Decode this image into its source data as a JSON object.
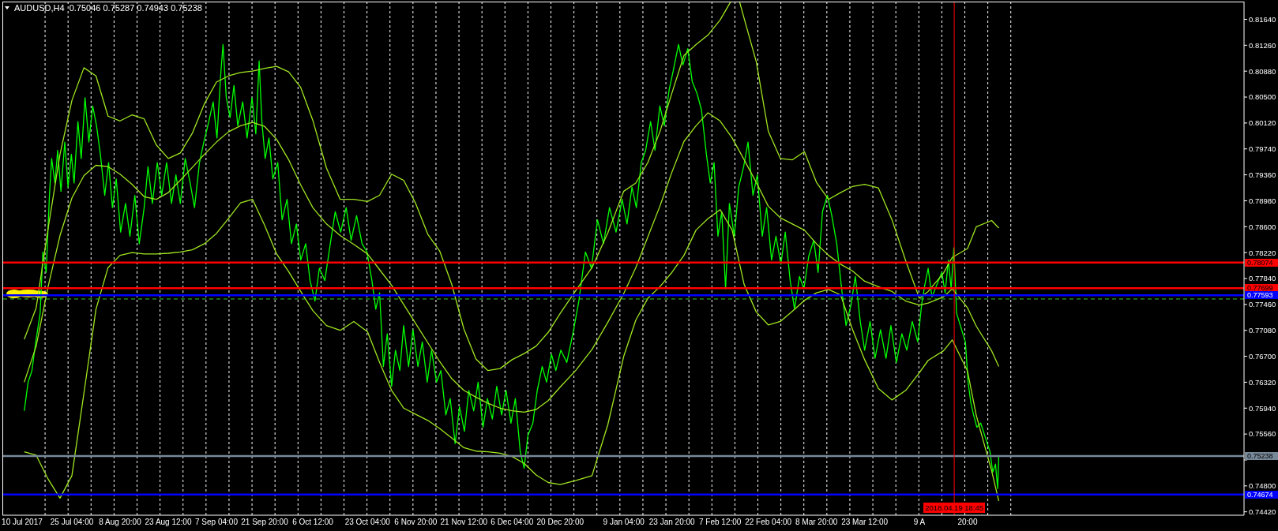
{
  "chart_data": {
    "type": "line",
    "title": "AUDUSD,H4  0.75046 0.75287 0.74943 0.75238",
    "xlim": [
      "2017-07-04",
      "2018-07-17"
    ],
    "ylim": [
      0.7437,
      0.819
    ],
    "xticks": [
      {
        "value": "2017-07-10",
        "label": "10 Jul 2017"
      },
      {
        "value": "2017-07-17",
        "label": null
      },
      {
        "value": "2017-07-24",
        "label": null
      },
      {
        "value": "2017-07-25T04:00",
        "label": "25 Jul 04:00"
      },
      {
        "value": "2017-07-31",
        "label": null
      },
      {
        "value": "2017-08-07",
        "label": null
      },
      {
        "value": "2017-08-08T20:00",
        "label": "8 Aug 20:00"
      },
      {
        "value": "2017-08-14",
        "label": null
      },
      {
        "value": "2017-08-21",
        "label": null
      },
      {
        "value": "2017-08-23T12:00",
        "label": "23 Aug 12:00"
      },
      {
        "value": "2017-08-28",
        "label": null
      },
      {
        "value": "2017-09-04",
        "label": null
      },
      {
        "value": "2017-09-07T04:00",
        "label": "7 Sep 04:00"
      },
      {
        "value": "2017-09-11",
        "label": null
      },
      {
        "value": "2017-09-18",
        "label": null
      },
      {
        "value": "2017-09-21T20:00",
        "label": "21 Sep 20:00"
      },
      {
        "value": "2017-09-25",
        "label": null
      },
      {
        "value": "2017-10-02",
        "label": null
      },
      {
        "value": "2017-10-06T12:00",
        "label": "6 Oct 12:00"
      },
      {
        "value": "2017-10-09",
        "label": null
      },
      {
        "value": "2017-10-16",
        "label": null
      },
      {
        "value": "2017-10-23",
        "label": null
      },
      {
        "value": "2017-10-23T04:00",
        "label": "23 Oct 04:00"
      },
      {
        "value": "2017-10-30",
        "label": null
      },
      {
        "value": "2017-11-06",
        "label": null
      },
      {
        "value": "2017-11-06T20:00",
        "label": "6 Nov 20:00"
      },
      {
        "value": "2017-11-13",
        "label": null
      },
      {
        "value": "2017-11-20",
        "label": null
      },
      {
        "value": "2017-11-21T12:00",
        "label": "21 Nov 12:00"
      },
      {
        "value": "2017-11-27",
        "label": null
      },
      {
        "value": "2017-12-04",
        "label": null
      },
      {
        "value": "2017-12-06T04:00",
        "label": "6 Dec 04:00"
      },
      {
        "value": "2017-12-11",
        "label": null
      },
      {
        "value": "2017-12-18",
        "label": null
      },
      {
        "value": "2017-12-20T20:00",
        "label": "20 Dec 20:00"
      },
      {
        "value": "2017-12-25",
        "label": null
      },
      {
        "value": "2018-01-01",
        "label": null
      },
      {
        "value": "2018-01-08",
        "label": null
      },
      {
        "value": "2018-01-09T04:00",
        "label": "9 Jan 04:00"
      },
      {
        "value": "2018-01-15",
        "label": null
      },
      {
        "value": "2018-01-22",
        "label": null
      },
      {
        "value": "2018-01-23T20:00",
        "label": "23 Jan 20:00"
      },
      {
        "value": "2018-01-29",
        "label": null
      },
      {
        "value": "2018-02-05",
        "label": null
      },
      {
        "value": "2018-02-07T12:00",
        "label": "7 Feb 12:00"
      },
      {
        "value": "2018-02-12",
        "label": null
      },
      {
        "value": "2018-02-19",
        "label": null
      },
      {
        "value": "2018-02-22T04:00",
        "label": "22 Feb 04:00"
      },
      {
        "value": "2018-02-26",
        "label": null
      },
      {
        "value": "2018-03-05",
        "label": null
      },
      {
        "value": "2018-03-08T20:00",
        "label": "8 Mar 20:00"
      },
      {
        "value": "2018-03-12",
        "label": null
      },
      {
        "value": "2018-03-19",
        "label": null
      },
      {
        "value": "2018-03-23T12:00",
        "label": "23 Mar 12:00"
      },
      {
        "value": "2018-03-26",
        "label": null
      },
      {
        "value": "2018-04-02",
        "label": null
      },
      {
        "value": "2018-04-09",
        "label": null
      },
      {
        "value": "2018-04-09T04:00",
        "label": "9 A"
      },
      {
        "value": "2018-04-16",
        "label": null
      },
      {
        "value": "2018-04-23",
        "label": null
      },
      {
        "value": "2018-04-23T20:00",
        "label": "20:00"
      },
      {
        "value": "2018-04-30",
        "label": null
      },
      {
        "value": "2018-05-07",
        "label": null
      }
    ],
    "yticks": [
      {
        "value": 0.8164,
        "label": "0.81640"
      },
      {
        "value": 0.8126,
        "label": "0.81260"
      },
      {
        "value": 0.8088,
        "label": "0.80880"
      },
      {
        "value": 0.805,
        "label": "0.80500"
      },
      {
        "value": 0.8012,
        "label": "0.80120"
      },
      {
        "value": 0.7974,
        "label": "0.79740"
      },
      {
        "value": 0.7936,
        "label": "0.79360"
      },
      {
        "value": 0.7898,
        "label": "0.78980"
      },
      {
        "value": 0.786,
        "label": "0.78600"
      },
      {
        "value": 0.7822,
        "label": "0.78220"
      },
      {
        "value": 0.7784,
        "label": "0.77840"
      },
      {
        "value": 0.7746,
        "label": "0.77460"
      },
      {
        "value": 0.7708,
        "label": "0.77080"
      },
      {
        "value": 0.767,
        "label": "0.76700"
      },
      {
        "value": 0.7632,
        "label": "0.76320"
      },
      {
        "value": 0.7594,
        "label": "0.75940"
      },
      {
        "value": 0.7556,
        "label": "0.75560"
      },
      {
        "value": 0.7518,
        "label": null
      },
      {
        "value": 0.748,
        "label": "0.74800"
      },
      {
        "value": 0.7442,
        "label": "0.74420"
      }
    ],
    "grid": "x",
    "series": [
      {
        "color": "#00ff00",
        "x": [
          "2017-07-10T16:00",
          "2017-07-11T20:00",
          "2017-07-13T00:00",
          "2017-07-14T04:00",
          "2017-07-15T12:00",
          "2017-07-16T08:00",
          "2017-07-17T08:00",
          "2017-07-18T08:00",
          "2017-07-19T00:00",
          "2017-07-20T00:00",
          "2017-07-20T20:00",
          "2017-07-21T20:00",
          "2017-07-23T00:00",
          "2017-07-24T00:00",
          "2017-07-25T00:00",
          "2017-07-25T20:00",
          "2017-07-27T00:00",
          "2017-07-28T00:00",
          "2017-07-29T04:00",
          "2017-07-30T08:00",
          "2017-07-31T12:00",
          "2017-08-01T16:00",
          "2017-08-02T20:00",
          "2017-08-04T04:00",
          "2017-08-05T08:00",
          "2017-08-06T12:00",
          "2017-08-07T16:00",
          "2017-08-09T00:00",
          "2017-08-10T12:00",
          "2017-08-11T20:00",
          "2017-08-13T08:00",
          "2017-08-14T16:00",
          "2017-08-16T04:00",
          "2017-08-17T08:00",
          "2017-08-18T16:00",
          "2017-08-20T04:00",
          "2017-08-21T12:00",
          "2017-08-23T00:00",
          "2017-08-24T12:00",
          "2017-08-25T20:00",
          "2017-08-27T04:00",
          "2017-08-28T16:00",
          "2017-08-30T04:00",
          "2017-08-31T12:00",
          "2017-09-02T00:00",
          "2017-09-03T08:00",
          "2017-09-04T20:00",
          "2017-09-06T04:00",
          "2017-09-07T08:00",
          "2017-09-08T12:00",
          "2017-09-09T04:00",
          "2017-09-10T04:00",
          "2017-09-11T08:00",
          "2017-09-12T12:00",
          "2017-09-13T16:00",
          "2017-09-15T04:00",
          "2017-09-16T12:00",
          "2017-09-18T00:00",
          "2017-09-19T04:00",
          "2017-09-20T04:00",
          "2017-09-21T00:00",
          "2017-09-22T00:00",
          "2017-09-23T04:00",
          "2017-09-24T08:00",
          "2017-09-25T20:00",
          "2017-09-27T04:00",
          "2017-09-28T16:00",
          "2017-09-30T00:00",
          "2017-10-01T12:00",
          "2017-10-02T20:00",
          "2017-10-04T08:00",
          "2017-10-05T16:00",
          "2017-10-07T04:00",
          "2017-10-08T12:00",
          "2017-10-10T04:00",
          "2017-10-11T20:00",
          "2017-10-13T08:00",
          "2017-10-15T00:00",
          "2017-10-16T16:00",
          "2017-10-18T04:00",
          "2017-10-19T20:00",
          "2017-10-21T12:00",
          "2017-10-23T00:00",
          "2017-10-24T12:00",
          "2017-10-25T16:00",
          "2017-10-26T20:00",
          "2017-10-28T00:00",
          "2017-10-29T04:00",
          "2017-10-30T12:00",
          "2017-10-31T16:00",
          "2017-11-02T00:00",
          "2017-11-03T04:00",
          "2017-11-04T16:00",
          "2017-11-06T00:00",
          "2017-11-07T12:00",
          "2017-11-08T20:00",
          "2017-11-10T08:00",
          "2017-11-11T16:00",
          "2017-11-13T04:00",
          "2017-11-14T12:00",
          "2017-11-16T00:00",
          "2017-11-17T08:00",
          "2017-11-18T20:00",
          "2017-11-20T04:00",
          "2017-11-21T16:00",
          "2017-11-23T00:00",
          "2017-11-24T12:00",
          "2017-11-25T20:00",
          "2017-11-27T08:00",
          "2017-11-28T16:00",
          "2017-11-30T04:00",
          "2017-12-01T12:00",
          "2017-12-03T00:00",
          "2017-12-04T08:00",
          "2017-12-05T20:00",
          "2017-12-07T04:00",
          "2017-12-08T16:00",
          "2017-12-09T20:00",
          "2017-12-11T00:00",
          "2017-12-12T12:00",
          "2017-12-13T20:00",
          "2017-12-15T08:00",
          "2017-12-16T16:00",
          "2017-12-18T04:00",
          "2017-12-19T12:00",
          "2017-12-21T00:00",
          "2017-12-22T20:00",
          "2017-12-24T16:00",
          "2017-12-26T12:00",
          "2017-12-28T12:00",
          "2017-12-30T08:00",
          "2018-01-01T04:00",
          "2018-01-03T00:00",
          "2018-01-04T20:00",
          "2018-01-06T20:00",
          "2018-01-08T16:00",
          "2018-01-10T04:00",
          "2018-01-11T16:00",
          "2018-01-13T00:00",
          "2018-01-14T12:00",
          "2018-01-15T20:00",
          "2018-01-17T08:00",
          "2018-01-18T16:00",
          "2018-01-20T04:00",
          "2018-01-21T12:00",
          "2018-01-23T00:00",
          "2018-01-24T08:00",
          "2018-01-25T20:00",
          "2018-01-27T04:00",
          "2018-01-28T16:00",
          "2018-01-30T00:00",
          "2018-01-31T12:00",
          "2018-02-01T20:00",
          "2018-02-03T08:00",
          "2018-02-04T12:00",
          "2018-02-05T16:00",
          "2018-02-06T20:00",
          "2018-02-08T00:00",
          "2018-02-09T04:00",
          "2018-02-10T08:00",
          "2018-02-11T20:00",
          "2018-02-13T04:00",
          "2018-02-14T16:00",
          "2018-02-16T00:00",
          "2018-02-17T12:00",
          "2018-02-18T20:00",
          "2018-02-20T08:00",
          "2018-02-21T16:00",
          "2018-02-23T04:00",
          "2018-02-24T12:00",
          "2018-02-26T00:00",
          "2018-02-27T08:00",
          "2018-02-28T20:00",
          "2018-03-02T04:00",
          "2018-03-03T16:00",
          "2018-03-05T00:00",
          "2018-03-06T12:00",
          "2018-03-08T00:00",
          "2018-03-09T08:00",
          "2018-03-10T16:00",
          "2018-03-12T04:00",
          "2018-03-13T12:00",
          "2018-03-15T00:00",
          "2018-03-16T12:00",
          "2018-03-17T20:00",
          "2018-03-19T08:00",
          "2018-03-20T16:00",
          "2018-03-22T04:00",
          "2018-03-23T12:00",
          "2018-03-25T04:00",
          "2018-03-26T16:00",
          "2018-03-28T08:00",
          "2018-03-30T00:00",
          "2018-03-31T12:00",
          "2018-04-02T04:00",
          "2018-04-03T20:00",
          "2018-04-05T08:00",
          "2018-04-07T00:00",
          "2018-04-08T16:00",
          "2018-04-09T20:00",
          "2018-04-10T20:00",
          "2018-04-11T20:00",
          "2018-04-13T00:00",
          "2018-04-16T00:00",
          "2018-04-17T00:00",
          "2018-04-18T00:00",
          "2018-04-18T20:00",
          "2018-04-19T16:00",
          "2018-04-20T12:00",
          "2018-04-23T04:00",
          "2018-04-24T00:00",
          "2018-04-24T20:00",
          "2018-04-25T16:00",
          "2018-04-26T16:00",
          "2018-04-27T20:00",
          "2018-04-30T16:00",
          "2018-05-01T12:00",
          "2018-05-02T08:00",
          "2018-05-03T00:00",
          "2018-05-03T08:00"
        ],
        "values": [
          0.759,
          0.7632,
          0.7649,
          0.7691,
          0.7733,
          0.7823,
          0.7793,
          0.7906,
          0.796,
          0.7924,
          0.7972,
          0.7912,
          0.7984,
          0.7918,
          0.7966,
          0.7924,
          0.8014,
          0.796,
          0.8049,
          0.7984,
          0.8037,
          0.8008,
          0.7966,
          0.7906,
          0.7954,
          0.7888,
          0.793,
          0.7852,
          0.7894,
          0.7846,
          0.7906,
          0.7835,
          0.7888,
          0.7948,
          0.7894,
          0.7954,
          0.7906,
          0.7954,
          0.7894,
          0.7936,
          0.7894,
          0.796,
          0.7924,
          0.7888,
          0.7954,
          0.7984,
          0.8014,
          0.8043,
          0.799,
          0.8085,
          0.8127,
          0.8049,
          0.802,
          0.8067,
          0.8008,
          0.8043,
          0.799,
          0.8049,
          0.7996,
          0.8103,
          0.8014,
          0.796,
          0.799,
          0.793,
          0.7954,
          0.787,
          0.79,
          0.7835,
          0.7864,
          0.7811,
          0.7835,
          0.7781,
          0.7751,
          0.7799,
          0.7781,
          0.7835,
          0.7882,
          0.7852,
          0.7888,
          0.784,
          0.7876,
          0.7835,
          0.7823,
          0.7781,
          0.7739,
          0.7763,
          0.7655,
          0.7703,
          0.7626,
          0.7679,
          0.7649,
          0.7715,
          0.7655,
          0.7709,
          0.7655,
          0.7691,
          0.7632,
          0.7679,
          0.7632,
          0.7649,
          0.7584,
          0.7608,
          0.7542,
          0.7596,
          0.756,
          0.762,
          0.759,
          0.7632,
          0.7566,
          0.7608,
          0.7578,
          0.7626,
          0.7584,
          0.762,
          0.7572,
          0.7608,
          0.753,
          0.7506,
          0.7554,
          0.7572,
          0.762,
          0.7655,
          0.7632,
          0.7673,
          0.7649,
          0.7679,
          0.7661,
          0.7703,
          0.7751,
          0.7823,
          0.7799,
          0.787,
          0.7835,
          0.7888,
          0.7852,
          0.79,
          0.7864,
          0.7918,
          0.7888,
          0.7954,
          0.7972,
          0.8014,
          0.7972,
          0.8037,
          0.8008,
          0.8061,
          0.8091,
          0.8127,
          0.8097,
          0.8121,
          0.8073,
          0.8055,
          0.8031,
          0.7966,
          0.7924,
          0.7954,
          0.7846,
          0.7882,
          0.7769,
          0.7894,
          0.7846,
          0.7918,
          0.7948,
          0.7984,
          0.7906,
          0.7936,
          0.7846,
          0.7888,
          0.7811,
          0.7846,
          0.7805,
          0.7852,
          0.7781,
          0.7739,
          0.7787,
          0.7769,
          0.7817,
          0.784,
          0.7793,
          0.7882,
          0.7906,
          0.7876,
          0.7835,
          0.7769,
          0.7715,
          0.7745,
          0.7787,
          0.7721,
          0.7679,
          0.7721,
          0.7667,
          0.7709,
          0.7667,
          0.7715,
          0.7661,
          0.7703,
          0.7679,
          0.7721,
          0.7691,
          0.7745,
          0.7775,
          0.7799,
          0.7757,
          0.7793,
          0.7763,
          0.7811,
          0.7769,
          0.7829,
          0.7733,
          0.7691,
          0.7632,
          0.7602,
          0.7584,
          0.7566,
          0.7572,
          0.753,
          0.75,
          0.7512,
          0.7476,
          0.7524
        ]
      },
      {
        "color": "#a0e620",
        "x": [
          "2017-07-10T16:00",
          "2017-07-14T07:00",
          "2017-07-17T22:00",
          "2017-07-21T13:00",
          "2017-07-25T04:00",
          "2017-07-28T20:00",
          "2017-08-01T12:00",
          "2017-08-05T04:00",
          "2017-08-08T20:00",
          "2017-08-12T12:00",
          "2017-08-16T04:00",
          "2017-08-19T20:00",
          "2017-08-23T12:00",
          "2017-08-27T04:00",
          "2017-08-30T20:00",
          "2017-09-03T12:00",
          "2017-09-07T04:00",
          "2017-09-10T20:00",
          "2017-09-14T12:00",
          "2017-09-18T04:00",
          "2017-09-21T20:00",
          "2017-09-25T12:00",
          "2017-09-29T04:00",
          "2017-10-02T20:00",
          "2017-10-06T12:00",
          "2017-10-10T16:00",
          "2017-10-14T20:00",
          "2017-10-19T00:00",
          "2017-10-23T04:00",
          "2017-10-26T20:00",
          "2017-10-30T12:00",
          "2017-11-03T04:00",
          "2017-11-06T20:00",
          "2017-11-10T12:00",
          "2017-11-14T04:00",
          "2017-11-17T20:00",
          "2017-11-21T12:00",
          "2017-11-25T04:00",
          "2017-11-28T20:00",
          "2017-12-02T12:00",
          "2017-12-06T04:00",
          "2017-12-09T20:00",
          "2017-12-13T12:00",
          "2017-12-17T04:00",
          "2017-12-20T20:00",
          "2017-12-25T16:00",
          "2017-12-30T12:00",
          "2018-01-04T08:00",
          "2018-01-09T04:00",
          "2018-01-12T20:00",
          "2018-01-16T12:00",
          "2018-01-20T04:00",
          "2018-01-23T20:00",
          "2018-01-27T12:00",
          "2018-01-31T04:00",
          "2018-02-03T20:00",
          "2018-02-07T12:00",
          "2018-02-10T15:00",
          "2018-02-12T00:00",
          "2018-02-13T11:00",
          "2018-02-14T20:00",
          "2018-02-18T12:00",
          "2018-02-22T04:00",
          "2018-02-25T20:00",
          "2018-03-01T12:00",
          "2018-03-05T04:00",
          "2018-03-08T20:00",
          "2018-03-12T12:00",
          "2018-03-16T04:00",
          "2018-03-19T20:00",
          "2018-03-23T12:00",
          "2018-03-27T16:00",
          "2018-03-31T20:00",
          "2018-04-05T00:00",
          "2018-04-09T04:00",
          "2018-04-11T20:00",
          "2018-04-16T12:00",
          "2018-04-19T04:00",
          "2018-04-23T20:00",
          "2018-04-26T12:00",
          "2018-05-01T04:00",
          "2018-05-03T08:00"
        ],
        "values": [
          0.7695,
          0.7741,
          0.7857,
          0.7966,
          0.8045,
          0.8093,
          0.8081,
          0.8022,
          0.8015,
          0.8024,
          0.8018,
          0.798,
          0.796,
          0.7968,
          0.7997,
          0.804,
          0.8072,
          0.8081,
          0.8086,
          0.8088,
          0.8092,
          0.8095,
          0.8087,
          0.8064,
          0.8016,
          0.7946,
          0.79,
          0.79,
          0.7897,
          0.7906,
          0.7937,
          0.7928,
          0.7894,
          0.7849,
          0.7824,
          0.7775,
          0.771,
          0.7666,
          0.7649,
          0.7652,
          0.7665,
          0.7674,
          0.7685,
          0.7705,
          0.7733,
          0.7767,
          0.78,
          0.7851,
          0.7912,
          0.7924,
          0.7954,
          0.7999,
          0.8056,
          0.8111,
          0.8127,
          0.8141,
          0.8163,
          0.8189,
          null,
          0.8189,
          0.8165,
          0.8102,
          0.8,
          0.796,
          0.7958,
          0.797,
          0.7925,
          0.79,
          0.791,
          0.7919,
          0.7922,
          0.7917,
          0.787,
          0.781,
          0.7755,
          0.7765,
          0.7792,
          0.7815,
          0.7828,
          0.786,
          0.7869,
          0.7858
        ]
      },
      {
        "color": "#a0e620",
        "x": [
          "2017-07-10T16:00",
          "2017-07-14T07:00",
          "2017-07-17T22:00",
          "2017-07-21T13:00",
          "2017-07-25T04:00",
          "2017-07-28T20:00",
          "2017-08-01T12:00",
          "2017-08-05T04:00",
          "2017-08-08T20:00",
          "2017-08-12T12:00",
          "2017-08-16T04:00",
          "2017-08-19T20:00",
          "2017-08-23T12:00",
          "2017-08-27T04:00",
          "2017-08-30T20:00",
          "2017-09-03T12:00",
          "2017-09-07T04:00",
          "2017-09-10T20:00",
          "2017-09-14T12:00",
          "2017-09-18T04:00",
          "2017-09-21T20:00",
          "2017-09-25T12:00",
          "2017-09-29T04:00",
          "2017-10-02T20:00",
          "2017-10-06T12:00",
          "2017-10-10T16:00",
          "2017-10-14T20:00",
          "2017-10-19T00:00",
          "2017-10-23T04:00",
          "2017-10-26T20:00",
          "2017-10-30T12:00",
          "2017-11-03T04:00",
          "2017-11-06T20:00",
          "2017-11-10T12:00",
          "2017-11-14T04:00",
          "2017-11-17T20:00",
          "2017-11-21T12:00",
          "2017-11-25T04:00",
          "2017-11-28T20:00",
          "2017-12-02T12:00",
          "2017-12-06T04:00",
          "2017-12-09T20:00",
          "2017-12-13T12:00",
          "2017-12-17T04:00",
          "2017-12-20T20:00",
          "2017-12-25T16:00",
          "2017-12-30T12:00",
          "2018-01-04T08:00",
          "2018-01-09T04:00",
          "2018-01-12T20:00",
          "2018-01-16T12:00",
          "2018-01-20T04:00",
          "2018-01-23T20:00",
          "2018-01-27T12:00",
          "2018-01-31T04:00",
          "2018-02-03T20:00",
          "2018-02-07T12:00",
          "2018-02-11T04:00",
          "2018-02-14T20:00",
          "2018-02-18T12:00",
          "2018-02-22T04:00",
          "2018-02-25T20:00",
          "2018-03-01T12:00",
          "2018-03-05T04:00",
          "2018-03-08T20:00",
          "2018-03-12T12:00",
          "2018-03-16T04:00",
          "2018-03-19T20:00",
          "2018-03-23T12:00",
          "2018-03-27T16:00",
          "2018-03-31T20:00",
          "2018-04-05T00:00",
          "2018-04-09T04:00",
          "2018-04-11T20:00",
          "2018-04-16T12:00",
          "2018-04-19T04:00",
          "2018-04-23T20:00",
          "2018-04-26T12:00",
          "2018-05-01T04:00",
          "2018-05-03T08:00"
        ],
        "values": [
          0.7632,
          0.7685,
          0.7772,
          0.7847,
          0.7902,
          0.7935,
          0.795,
          0.7948,
          0.7937,
          0.7922,
          0.7904,
          0.79,
          0.791,
          0.7928,
          0.7947,
          0.7966,
          0.7984,
          0.7999,
          0.8008,
          0.8013,
          0.8007,
          0.7988,
          0.7958,
          0.7921,
          0.7888,
          0.7864,
          0.7847,
          0.7834,
          0.782,
          0.7797,
          0.7774,
          0.7746,
          0.7718,
          0.769,
          0.7662,
          0.7637,
          0.762,
          0.761,
          0.7601,
          0.7594,
          0.759,
          0.7588,
          0.7592,
          0.7605,
          0.7625,
          0.765,
          0.768,
          0.772,
          0.7762,
          0.78,
          0.7845,
          0.789,
          0.794,
          0.7985,
          0.8008,
          0.8027,
          0.8015,
          0.799,
          0.7958,
          0.7925,
          0.789,
          0.7873,
          0.7864,
          0.7855,
          0.7835,
          0.7818,
          0.7805,
          0.7795,
          0.778,
          0.7772,
          0.7765,
          0.7751,
          0.7745,
          0.7748,
          0.7757,
          0.7769,
          0.7741,
          0.7714,
          0.7678,
          0.7655
        ]
      },
      {
        "color": "#a0e620",
        "x": [
          "2017-07-10T16:00",
          "2017-07-14T07:00",
          "2017-07-17T22:00",
          "2017-07-21T13:00",
          "2017-07-25T04:00",
          "2017-07-28T20:00",
          "2017-08-01T12:00",
          "2017-08-05T04:00",
          "2017-08-08T20:00",
          "2017-08-12T12:00",
          "2017-08-16T04:00",
          "2017-08-19T20:00",
          "2017-08-23T12:00",
          "2017-08-27T04:00",
          "2017-08-30T20:00",
          "2017-09-03T12:00",
          "2017-09-07T04:00",
          "2017-09-10T20:00",
          "2017-09-14T12:00",
          "2017-09-18T04:00",
          "2017-09-21T20:00",
          "2017-09-25T12:00",
          "2017-09-29T04:00",
          "2017-10-02T20:00",
          "2017-10-06T12:00",
          "2017-10-10T16:00",
          "2017-10-14T20:00",
          "2017-10-19T00:00",
          "2017-10-23T04:00",
          "2017-10-26T20:00",
          "2017-10-30T12:00",
          "2017-11-03T04:00",
          "2017-11-06T20:00",
          "2017-11-10T12:00",
          "2017-11-14T04:00",
          "2017-11-17T20:00",
          "2017-11-21T12:00",
          "2017-11-25T04:00",
          "2017-11-28T20:00",
          "2017-12-02T12:00",
          "2017-12-06T04:00",
          "2017-12-09T20:00",
          "2017-12-13T12:00",
          "2017-12-17T04:00",
          "2017-12-20T20:00",
          "2017-12-25T16:00",
          "2017-12-30T12:00",
          "2018-01-04T08:00",
          "2018-01-09T04:00",
          "2018-01-12T20:00",
          "2018-01-16T12:00",
          "2018-01-20T04:00",
          "2018-01-23T20:00",
          "2018-01-27T12:00",
          "2018-01-31T04:00",
          "2018-02-03T20:00",
          "2018-02-07T12:00",
          "2018-02-11T04:00",
          "2018-02-14T20:00",
          "2018-02-18T12:00",
          "2018-02-22T04:00",
          "2018-02-25T20:00",
          "2018-03-01T12:00",
          "2018-03-05T04:00",
          "2018-03-08T20:00",
          "2018-03-12T12:00",
          "2018-03-16T04:00",
          "2018-03-19T20:00",
          "2018-03-23T12:00",
          "2018-03-27T16:00",
          "2018-03-31T20:00",
          "2018-04-05T00:00",
          "2018-04-09T04:00",
          "2018-04-11T20:00",
          "2018-04-16T12:00",
          "2018-04-19T04:00",
          "2018-04-23T20:00",
          "2018-04-26T12:00",
          "2018-05-01T04:00",
          "2018-05-03T08:00"
        ],
        "values": [
          0.753,
          0.7525,
          0.749,
          0.7462,
          0.7495,
          0.7616,
          0.7739,
          0.78,
          0.7818,
          0.7822,
          0.782,
          0.782,
          0.7821,
          0.7823,
          0.7826,
          0.7835,
          0.785,
          0.7872,
          0.7895,
          0.79,
          0.7862,
          0.782,
          0.7794,
          0.7765,
          0.7737,
          0.7715,
          0.7708,
          0.7721,
          0.7706,
          0.7661,
          0.762,
          0.7594,
          0.7585,
          0.7576,
          0.7564,
          0.755,
          0.7536,
          0.7531,
          0.753,
          0.7528,
          0.7523,
          0.7513,
          0.7496,
          0.7485,
          0.7482,
          0.7488,
          0.7495,
          0.757,
          0.767,
          0.7723,
          0.7755,
          0.7772,
          0.7793,
          0.7818,
          0.7855,
          0.7872,
          0.7885,
          0.7855,
          0.7775,
          0.7735,
          0.7716,
          0.7721,
          0.7736,
          0.7752,
          0.7763,
          0.7768,
          0.776,
          0.7709,
          0.7665,
          0.7623,
          0.7606,
          0.762,
          0.7646,
          0.7664,
          0.7678,
          0.7694,
          0.7648,
          0.7583,
          0.7502,
          0.7458
        ]
      }
    ],
    "ref_lines": [
      {
        "axis": "y",
        "value": 0.78074,
        "label": "0.78074",
        "color": "#ff0000"
      },
      {
        "axis": "y",
        "value": 0.77699,
        "label": "0.77699",
        "color": "#ff0000"
      },
      {
        "axis": "y",
        "value": 0.77593,
        "label": "0.77593",
        "color": "#0000ff"
      },
      {
        "axis": "y",
        "value": 0.7754,
        "color": "#32cd32",
        "line_style": "dashed"
      },
      {
        "axis": "y",
        "value": 0.75238,
        "label": "0.75238",
        "color": "#778899"
      },
      {
        "axis": "y",
        "value": 0.74674,
        "label": "0.74674",
        "color": "#0000ff"
      },
      {
        "axis": "x",
        "value": "2018-04-19T18:45",
        "label": "2018.04.19 18:45",
        "color": "#ff0000"
      }
    ]
  }
}
